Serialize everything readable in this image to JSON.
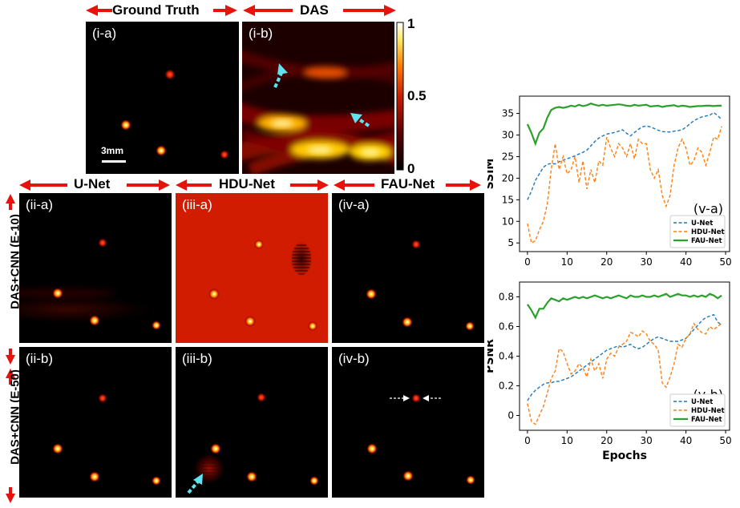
{
  "headers": {
    "ground_truth": "Ground Truth",
    "das": "DAS",
    "unet": "U-Net",
    "hdunet": "HDU-Net",
    "faunet": "FAU-Net",
    "row1": "DAS+CNN (E-10)",
    "row2": "DAS+CNN (E-50)"
  },
  "panels": {
    "i_a": "(i-a)",
    "i_b": "(i-b)",
    "ii_a": "(ii-a)",
    "iii_a": "(iii-a)",
    "iv_a": "(iv-a)",
    "ii_b": "(ii-b)",
    "iii_b": "(iii-b)",
    "iv_b": "(iv-b)"
  },
  "scale_bar": "3mm",
  "colorbar": {
    "ticks": [
      "1",
      "0.5",
      "0"
    ],
    "colors": [
      "#000000",
      "#5a0000",
      "#c81e00",
      "#ff7a00",
      "#ffe766",
      "#ffffff"
    ]
  },
  "colors": {
    "unet": "#1f77b4",
    "hdunet": "#ff7f0e",
    "faunet": "#2ca02c",
    "arrow_red": "#e8120c",
    "arrow_cyan": "#5fe2f0"
  },
  "chart_data": [
    {
      "type": "line",
      "panel_label": "(v-a)",
      "ylabel": "SSIM",
      "xlabel": "",
      "xlim": [
        -2,
        51
      ],
      "ylim": [
        3,
        39
      ],
      "xticks": [
        0,
        10,
        20,
        30,
        40,
        50
      ],
      "yticks": [
        5,
        10,
        15,
        20,
        25,
        30,
        35
      ],
      "legend_position": "bottom-right",
      "x": [
        0,
        1,
        2,
        3,
        4,
        5,
        6,
        7,
        8,
        9,
        10,
        11,
        12,
        13,
        14,
        15,
        16,
        17,
        18,
        19,
        20,
        21,
        22,
        23,
        24,
        25,
        26,
        27,
        28,
        29,
        30,
        31,
        32,
        33,
        34,
        35,
        36,
        37,
        38,
        39,
        40,
        41,
        42,
        43,
        44,
        45,
        46,
        47,
        48,
        49
      ],
      "series": [
        {
          "name": "U-Net",
          "style": "dashed",
          "values": [
            15,
            17,
            19.5,
            21,
            22.5,
            23.2,
            23.4,
            23.3,
            23.8,
            24.2,
            24.5,
            24.8,
            25.2,
            25.6,
            26,
            26.5,
            27.5,
            28.5,
            29.3,
            29.8,
            30.2,
            30.4,
            30.6,
            30.9,
            31.2,
            30.4,
            29.8,
            30.6,
            31.3,
            31.9,
            32.1,
            31.9,
            31.5,
            31.1,
            30.8,
            30.7,
            30.7,
            30.9,
            31,
            31.2,
            31.8,
            32.6,
            33.3,
            33.8,
            34.2,
            34.4,
            34.6,
            35.2,
            34.5,
            33.6
          ]
        },
        {
          "name": "HDU-Net",
          "style": "dashed",
          "values": [
            9.5,
            5,
            5.5,
            8,
            10,
            14,
            22,
            28,
            22,
            25,
            21,
            22,
            25,
            19,
            24,
            17.5,
            22,
            19,
            24,
            23,
            29.5,
            27,
            25,
            28,
            27,
            25,
            28,
            24.5,
            29,
            28,
            28,
            22,
            20,
            22,
            16,
            13.5,
            16,
            23,
            27,
            29,
            27,
            23,
            24,
            27,
            26,
            23,
            26,
            29.5,
            29,
            32
          ]
        },
        {
          "name": "FAU-Net",
          "style": "solid",
          "values": [
            32.5,
            30.5,
            28,
            30.5,
            31.5,
            34,
            35.8,
            36.3,
            36.5,
            36.3,
            36.5,
            36.8,
            36.6,
            37,
            36.7,
            36.9,
            37.3,
            37,
            36.8,
            37,
            36.8,
            36.9,
            37,
            37.1,
            37,
            36.8,
            36.7,
            37,
            36.8,
            36.9,
            37,
            36.6,
            36.7,
            36.8,
            36.5,
            36.7,
            36.8,
            36.9,
            36.6,
            36.8,
            36.7,
            36.5,
            36.6,
            36.7,
            36.7,
            36.8,
            36.8,
            36.7,
            36.8,
            36.8
          ]
        }
      ]
    },
    {
      "type": "line",
      "panel_label": "(v-b)",
      "ylabel": "PSNR",
      "xlabel": "Epochs",
      "xlim": [
        -2,
        51
      ],
      "ylim": [
        -0.1,
        0.9
      ],
      "xticks": [
        0,
        10,
        20,
        30,
        40,
        50
      ],
      "yticks": [
        0,
        0.2,
        0.4,
        0.6,
        0.8
      ],
      "legend_position": "bottom-right",
      "x": [
        0,
        1,
        2,
        3,
        4,
        5,
        6,
        7,
        8,
        9,
        10,
        11,
        12,
        13,
        14,
        15,
        16,
        17,
        18,
        19,
        20,
        21,
        22,
        23,
        24,
        25,
        26,
        27,
        28,
        29,
        30,
        31,
        32,
        33,
        34,
        35,
        36,
        37,
        38,
        39,
        40,
        41,
        42,
        43,
        44,
        45,
        46,
        47,
        48,
        49
      ],
      "series": [
        {
          "name": "U-Net",
          "style": "dashed",
          "values": [
            0.1,
            0.14,
            0.17,
            0.19,
            0.21,
            0.22,
            0.22,
            0.23,
            0.23,
            0.24,
            0.25,
            0.26,
            0.28,
            0.3,
            0.32,
            0.34,
            0.36,
            0.38,
            0.4,
            0.42,
            0.44,
            0.45,
            0.46,
            0.47,
            0.46,
            0.47,
            0.48,
            0.46,
            0.45,
            0.46,
            0.48,
            0.5,
            0.52,
            0.53,
            0.52,
            0.51,
            0.5,
            0.5,
            0.5,
            0.51,
            0.52,
            0.55,
            0.58,
            0.61,
            0.64,
            0.66,
            0.67,
            0.68,
            0.63,
            0.61
          ]
        },
        {
          "name": "HDU-Net",
          "style": "dashed",
          "values": [
            0.08,
            -0.04,
            -0.06,
            0,
            0.06,
            0.15,
            0.25,
            0.3,
            0.45,
            0.43,
            0.35,
            0.28,
            0.3,
            0.35,
            0.32,
            0.26,
            0.38,
            0.3,
            0.35,
            0.25,
            0.38,
            0.42,
            0.4,
            0.46,
            0.48,
            0.5,
            0.56,
            0.55,
            0.53,
            0.57,
            0.55,
            0.5,
            0.48,
            0.44,
            0.22,
            0.19,
            0.26,
            0.35,
            0.48,
            0.46,
            0.52,
            0.55,
            0.62,
            0.58,
            0.56,
            0.55,
            0.6,
            0.58,
            0.6,
            0.62
          ]
        },
        {
          "name": "FAU-Net",
          "style": "solid",
          "values": [
            0.75,
            0.71,
            0.66,
            0.72,
            0.72,
            0.76,
            0.79,
            0.78,
            0.77,
            0.79,
            0.78,
            0.79,
            0.8,
            0.79,
            0.8,
            0.79,
            0.8,
            0.81,
            0.8,
            0.79,
            0.8,
            0.79,
            0.8,
            0.81,
            0.8,
            0.79,
            0.81,
            0.8,
            0.8,
            0.81,
            0.8,
            0.8,
            0.81,
            0.8,
            0.81,
            0.82,
            0.8,
            0.81,
            0.82,
            0.81,
            0.81,
            0.8,
            0.81,
            0.8,
            0.81,
            0.8,
            0.82,
            0.81,
            0.79,
            0.81
          ]
        }
      ]
    }
  ]
}
